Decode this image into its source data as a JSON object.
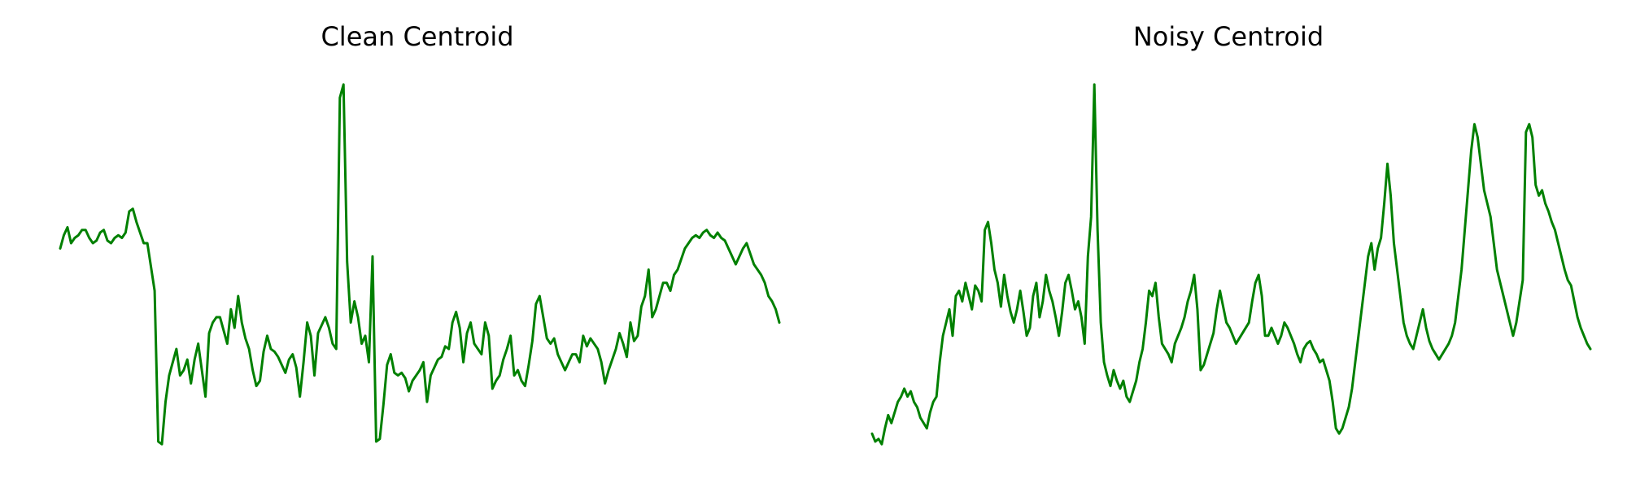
{
  "chart_data": [
    {
      "type": "line",
      "title": "Clean Centroid",
      "xlabel": "",
      "ylabel": "",
      "axes_visible": false,
      "grid": false,
      "color": "#008000",
      "series": [
        {
          "values": [
            0.38,
            0.43,
            0.46,
            0.4,
            0.42,
            0.43,
            0.45,
            0.45,
            0.42,
            0.4,
            0.41,
            0.44,
            0.45,
            0.41,
            0.4,
            0.42,
            0.43,
            0.42,
            0.44,
            0.52,
            0.53,
            0.48,
            0.44,
            0.4,
            0.4,
            0.31,
            0.22,
            -0.35,
            -0.36,
            -0.2,
            -0.1,
            -0.05,
            0.0,
            -0.1,
            -0.08,
            -0.04,
            -0.13,
            -0.04,
            0.02,
            -0.08,
            -0.18,
            0.06,
            0.1,
            0.12,
            0.12,
            0.07,
            0.02,
            0.15,
            0.08,
            0.2,
            0.1,
            0.04,
            0.0,
            -0.08,
            -0.14,
            -0.12,
            -0.01,
            0.05,
            0.0,
            -0.01,
            -0.03,
            -0.06,
            -0.09,
            -0.04,
            -0.02,
            -0.07,
            -0.18,
            -0.05,
            0.1,
            0.05,
            -0.1,
            0.06,
            0.09,
            0.12,
            0.08,
            0.02,
            0.0,
            0.95,
            1.0,
            0.33,
            0.1,
            0.18,
            0.12,
            0.02,
            0.05,
            -0.05,
            0.35,
            -0.35,
            -0.34,
            -0.21,
            -0.06,
            -0.02,
            -0.09,
            -0.1,
            -0.09,
            -0.11,
            -0.16,
            -0.12,
            -0.1,
            -0.08,
            -0.05,
            -0.2,
            -0.1,
            -0.07,
            -0.04,
            -0.03,
            0.01,
            0.0,
            0.1,
            0.14,
            0.08,
            -0.05,
            0.06,
            0.1,
            0.02,
            0.0,
            -0.02,
            0.1,
            0.05,
            -0.15,
            -0.12,
            -0.1,
            -0.04,
            0.0,
            0.05,
            -0.1,
            -0.08,
            -0.12,
            -0.14,
            -0.06,
            0.03,
            0.17,
            0.2,
            0.12,
            0.04,
            0.02,
            0.04,
            -0.02,
            -0.05,
            -0.08,
            -0.05,
            -0.02,
            -0.02,
            -0.05,
            0.05,
            0.01,
            0.04,
            0.02,
            0.0,
            -0.05,
            -0.13,
            -0.08,
            -0.04,
            0.0,
            0.06,
            0.02,
            -0.03,
            0.1,
            0.03,
            0.05,
            0.16,
            0.2,
            0.3,
            0.12,
            0.15,
            0.2,
            0.25,
            0.25,
            0.22,
            0.28,
            0.3,
            0.34,
            0.38,
            0.4,
            0.42,
            0.43,
            0.42,
            0.44,
            0.45,
            0.43,
            0.42,
            0.44,
            0.42,
            0.41,
            0.38,
            0.35,
            0.32,
            0.35,
            0.38,
            0.4,
            0.36,
            0.32,
            0.3,
            0.28,
            0.25,
            0.2,
            0.18,
            0.15,
            0.1
          ],
          "note": ""
        }
      ]
    },
    {
      "type": "line",
      "title": "Noisy Centroid",
      "xlabel": "",
      "ylabel": "",
      "axes_visible": false,
      "grid": false,
      "color": "#008000",
      "series": [
        {
          "values": [
            -0.32,
            -0.35,
            -0.34,
            -0.36,
            -0.3,
            -0.25,
            -0.28,
            -0.24,
            -0.2,
            -0.18,
            -0.15,
            -0.18,
            -0.16,
            -0.2,
            -0.22,
            -0.26,
            -0.28,
            -0.3,
            -0.24,
            -0.2,
            -0.18,
            -0.05,
            0.05,
            0.1,
            0.15,
            0.05,
            0.2,
            0.22,
            0.18,
            0.25,
            0.2,
            0.15,
            0.24,
            0.22,
            0.18,
            0.45,
            0.48,
            0.4,
            0.3,
            0.25,
            0.16,
            0.28,
            0.2,
            0.14,
            0.1,
            0.15,
            0.22,
            0.14,
            0.05,
            0.08,
            0.2,
            0.25,
            0.12,
            0.18,
            0.28,
            0.22,
            0.18,
            0.12,
            0.05,
            0.14,
            0.25,
            0.28,
            0.22,
            0.15,
            0.18,
            0.12,
            0.02,
            0.35,
            0.5,
            1.0,
            0.45,
            0.1,
            -0.05,
            -0.1,
            -0.14,
            -0.08,
            -0.12,
            -0.15,
            -0.12,
            -0.18,
            -0.2,
            -0.16,
            -0.12,
            -0.05,
            0.0,
            0.1,
            0.22,
            0.2,
            0.25,
            0.12,
            0.02,
            0.0,
            -0.02,
            -0.05,
            0.02,
            0.05,
            0.08,
            0.12,
            0.18,
            0.22,
            0.28,
            0.15,
            -0.08,
            -0.06,
            -0.02,
            0.02,
            0.06,
            0.15,
            0.22,
            0.16,
            0.1,
            0.08,
            0.05,
            0.02,
            0.04,
            0.06,
            0.08,
            0.1,
            0.18,
            0.25,
            0.28,
            0.2,
            0.05,
            0.05,
            0.08,
            0.05,
            0.02,
            0.05,
            0.1,
            0.08,
            0.05,
            0.02,
            -0.02,
            -0.05,
            0.0,
            0.02,
            0.03,
            0.0,
            -0.02,
            -0.05,
            -0.04,
            -0.08,
            -0.12,
            -0.2,
            -0.3,
            -0.32,
            -0.3,
            -0.26,
            -0.22,
            -0.15,
            -0.05,
            0.05,
            0.15,
            0.25,
            0.35,
            0.4,
            0.3,
            0.38,
            0.42,
            0.55,
            0.7,
            0.58,
            0.4,
            0.3,
            0.2,
            0.1,
            0.05,
            0.02,
            0.0,
            0.05,
            0.1,
            0.15,
            0.08,
            0.03,
            0.0,
            -0.02,
            -0.04,
            -0.02,
            0.0,
            0.02,
            0.05,
            0.1,
            0.2,
            0.3,
            0.45,
            0.6,
            0.75,
            0.85,
            0.8,
            0.7,
            0.6,
            0.55,
            0.5,
            0.4,
            0.3,
            0.25,
            0.2,
            0.15,
            0.1,
            0.05,
            0.1,
            0.18,
            0.26,
            0.82,
            0.85,
            0.8,
            0.62,
            0.58,
            0.6,
            0.55,
            0.52,
            0.48,
            0.45,
            0.4,
            0.35,
            0.3,
            0.26,
            0.24,
            0.18,
            0.12,
            0.08,
            0.05,
            0.02,
            0.0
          ],
          "note": ""
        }
      ]
    }
  ]
}
